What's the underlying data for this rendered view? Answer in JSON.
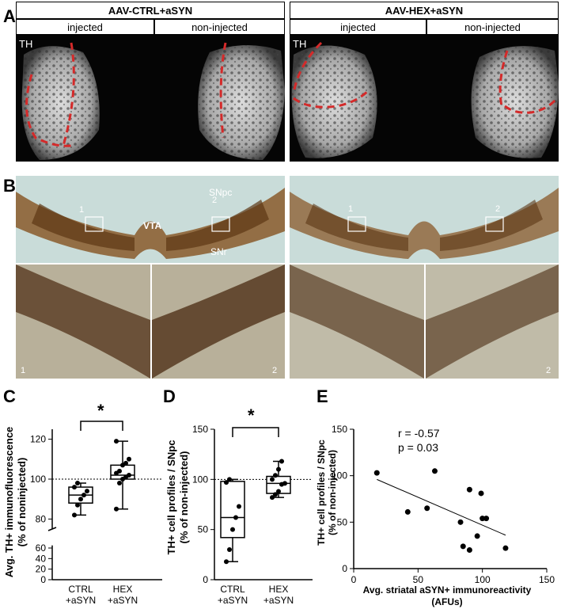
{
  "panelA": {
    "letter": "A",
    "groups": [
      {
        "title": "AAV-CTRL+aSYN",
        "sub": [
          "injected",
          "non-injected"
        ],
        "stain": "TH"
      },
      {
        "title": "AAV-HEX+aSYN",
        "sub": [
          "injected",
          "non-injected"
        ],
        "stain": "TH"
      }
    ]
  },
  "panelB": {
    "letter": "B",
    "labels": {
      "snpc": "SNpc",
      "vta": "VTA",
      "snr": "SNr",
      "box1": "1",
      "box2": "2"
    }
  },
  "panelC": {
    "letter": "C",
    "sig": "*",
    "chart_data": {
      "type": "box",
      "ylabel": "Avg. TH+ immunofluorescence\n(% of noninjected)",
      "categories": [
        "CTRL\n+aSYN",
        "HEX\n+aSYN"
      ],
      "yticks_top": [
        80,
        100,
        120
      ],
      "yticks_bottom": [
        0,
        20,
        40,
        60
      ],
      "reference_line": 100,
      "boxes": [
        {
          "min": 82,
          "q1": 88,
          "median": 92,
          "q3": 96,
          "max": 98,
          "points": [
            82,
            87,
            90,
            92,
            94,
            96,
            98
          ]
        },
        {
          "min": 85,
          "q1": 100,
          "median": 102,
          "q3": 107,
          "max": 119,
          "points": [
            85,
            98,
            100,
            101,
            102,
            103,
            104,
            107,
            108,
            110,
            119
          ]
        }
      ]
    }
  },
  "panelD": {
    "letter": "D",
    "sig": "*",
    "chart_data": {
      "type": "box",
      "ylabel": "TH+ cell profiles / SNpc\n(% of non-injected)",
      "categories": [
        "CTRL\n+aSYN",
        "HEX\n+aSYN"
      ],
      "yticks": [
        0,
        50,
        100,
        150
      ],
      "ylim": [
        0,
        150
      ],
      "reference_line": 100,
      "boxes": [
        {
          "min": 18,
          "q1": 42,
          "median": 62,
          "q3": 98,
          "max": 100,
          "points": [
            18,
            30,
            50,
            62,
            73,
            97,
            100
          ]
        },
        {
          "min": 82,
          "q1": 86,
          "median": 96,
          "q3": 103,
          "max": 118,
          "points": [
            82,
            85,
            88,
            95,
            96,
            100,
            104,
            110,
            118
          ]
        }
      ]
    }
  },
  "panelE": {
    "letter": "E",
    "stats": {
      "r": "r  = -0.57",
      "p": "p =  0.03"
    },
    "chart_data": {
      "type": "scatter",
      "xlabel": "Avg. striatal aSYN+ immunoreactivity\n(AFUs)",
      "ylabel": "TH+ cell profiles / SNpc\n(% of non-injected)",
      "xlim": [
        0,
        150
      ],
      "ylim": [
        0,
        150
      ],
      "xticks": [
        0,
        50,
        100,
        150
      ],
      "yticks": [
        0,
        50,
        100,
        150
      ],
      "points": [
        [
          18,
          103
        ],
        [
          42,
          61
        ],
        [
          57,
          65
        ],
        [
          63,
          105
        ],
        [
          83,
          50
        ],
        [
          85,
          24
        ],
        [
          90,
          85
        ],
        [
          90,
          20
        ],
        [
          96,
          35
        ],
        [
          99,
          81
        ],
        [
          100,
          54
        ],
        [
          103,
          54
        ],
        [
          118,
          22
        ]
      ],
      "fit": [
        [
          18,
          96
        ],
        [
          118,
          36
        ]
      ]
    }
  }
}
